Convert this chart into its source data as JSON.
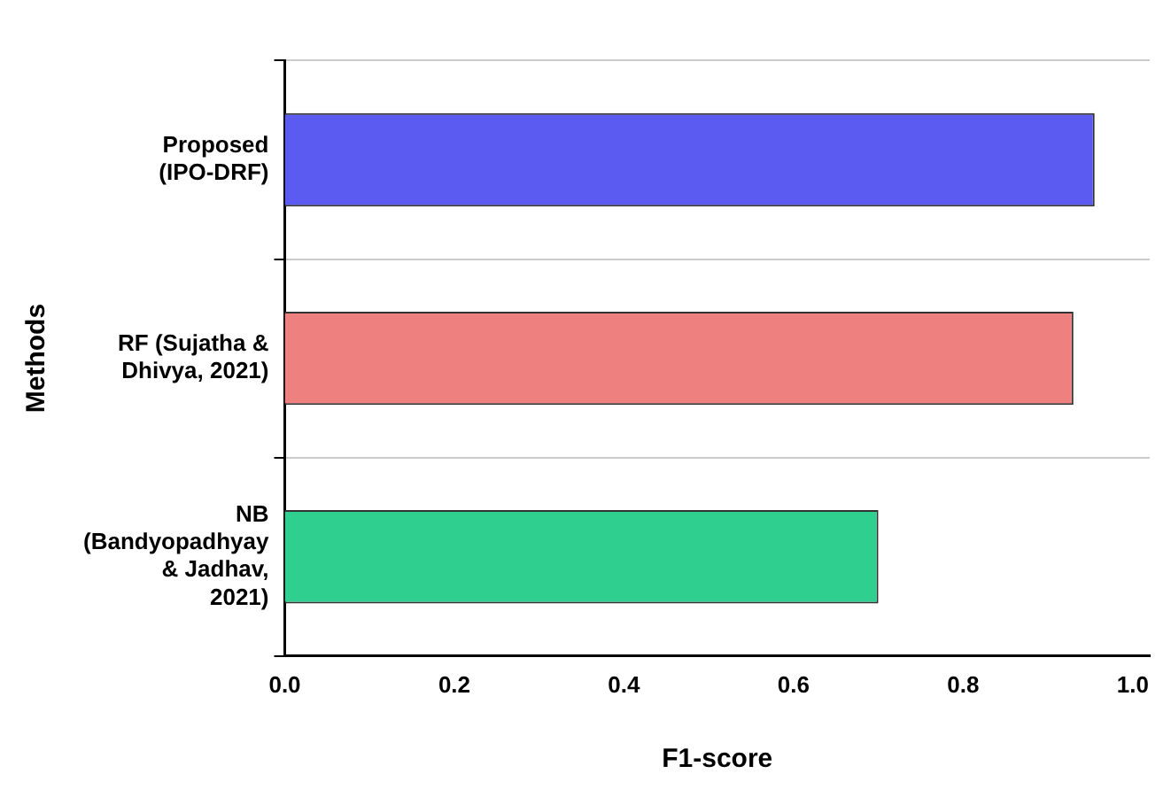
{
  "chart_data": {
    "type": "bar",
    "orientation": "horizontal",
    "xlabel": "F1-score",
    "ylabel": "Methods",
    "categories": [
      "Proposed (IPO-DRF)",
      "RF (Sujatha & Dhivya, 2021)",
      "NB (Bandyopadhyay & Jadhav, 2021)"
    ],
    "values": [
      0.955,
      0.93,
      0.7
    ],
    "colors": [
      "#5b5bf2",
      "#ef8080",
      "#2fcf8f"
    ],
    "xlim": [
      0,
      1.02
    ],
    "xticks": [
      {
        "value": 0,
        "label": "0.0"
      },
      0.2,
      0.4,
      0.6,
      0.8,
      {
        "value": 1,
        "label": "1.0"
      }
    ],
    "grid": "y",
    "legend": false
  }
}
